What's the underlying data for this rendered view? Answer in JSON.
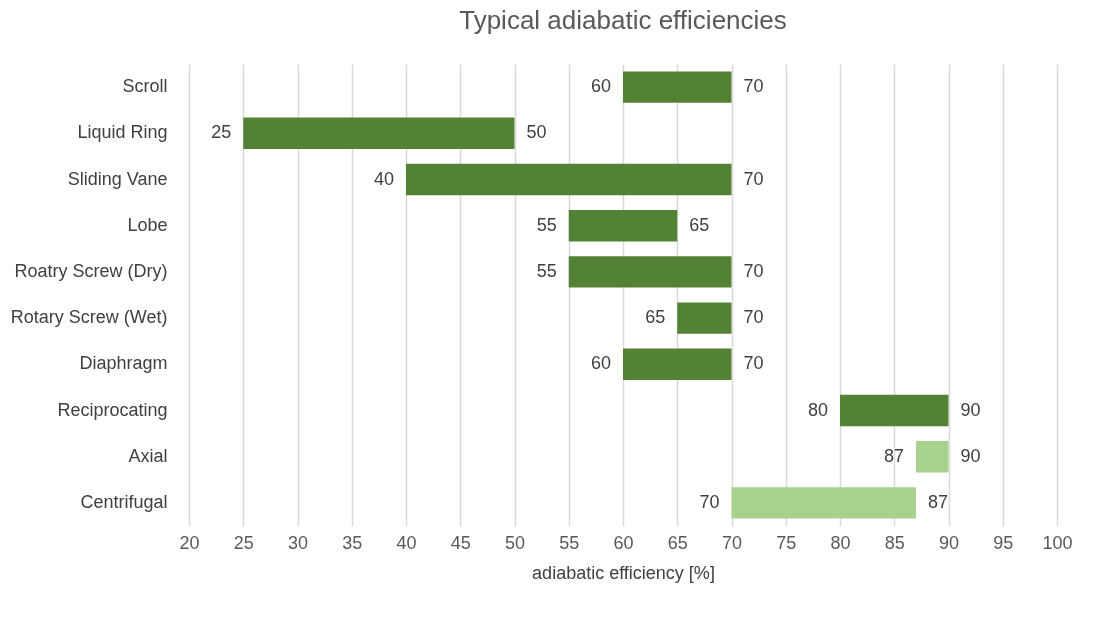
{
  "chart_data": {
    "type": "bar",
    "orientation": "horizontal",
    "title": "Typical adiabatic efficiencies",
    "xlabel": "adiabatic efficiency [%]",
    "categories": [
      "Scroll",
      "Liquid Ring",
      "Sliding Vane",
      "Lobe",
      "Roatry Screw (Dry)",
      "Rotary Screw (Wet)",
      "Diaphragm",
      "Reciprocating",
      "Axial",
      "Centrifugal"
    ],
    "base": [
      60,
      25,
      40,
      55,
      55,
      65,
      60,
      80,
      87,
      70
    ],
    "values": [
      10,
      25,
      30,
      10,
      15,
      5,
      10,
      10,
      3,
      17
    ],
    "colors": [
      "#548235",
      "#548235",
      "#548235",
      "#548235",
      "#548235",
      "#548235",
      "#548235",
      "#548235",
      "#a9d18e",
      "#a9d18e"
    ],
    "xlim": [
      20,
      100
    ],
    "xticks": [
      20,
      25,
      30,
      35,
      40,
      45,
      50,
      55,
      60,
      65,
      70,
      75,
      80,
      85,
      90,
      95,
      100
    ],
    "grid": "x",
    "annotations": [
      {
        "text": "60",
        "x": 60,
        "y": "Scroll"
      },
      {
        "text": "70",
        "x": 70,
        "y": "Scroll"
      },
      {
        "text": "25",
        "x": 25,
        "y": "Liquid Ring"
      },
      {
        "text": "50",
        "x": 50,
        "y": "Liquid Ring"
      },
      {
        "text": "40",
        "x": 40,
        "y": "Sliding Vane"
      },
      {
        "text": "70",
        "x": 70,
        "y": "Sliding Vane"
      },
      {
        "text": "55",
        "x": 55,
        "y": "Lobe"
      },
      {
        "text": "65",
        "x": 65,
        "y": "Lobe"
      },
      {
        "text": "55",
        "x": 55,
        "y": "Roatry Screw (Dry)"
      },
      {
        "text": "70",
        "x": 70,
        "y": "Roatry Screw (Dry)"
      },
      {
        "text": "65",
        "x": 65,
        "y": "Rotary Screw (Wet)"
      },
      {
        "text": "70",
        "x": 70,
        "y": "Rotary Screw (Wet)"
      },
      {
        "text": "60",
        "x": 60,
        "y": "Diaphragm"
      },
      {
        "text": "70",
        "x": 70,
        "y": "Diaphragm"
      },
      {
        "text": "80",
        "x": 80,
        "y": "Reciprocating"
      },
      {
        "text": "90",
        "x": 90,
        "y": "Reciprocating"
      },
      {
        "text": "87",
        "x": 87,
        "y": "Axial"
      },
      {
        "text": "90",
        "x": 90,
        "y": "Axial"
      },
      {
        "text": "70",
        "x": 70,
        "y": "Centrifugal"
      },
      {
        "text": "87",
        "x": 87,
        "y": "Centrifugal"
      }
    ]
  }
}
